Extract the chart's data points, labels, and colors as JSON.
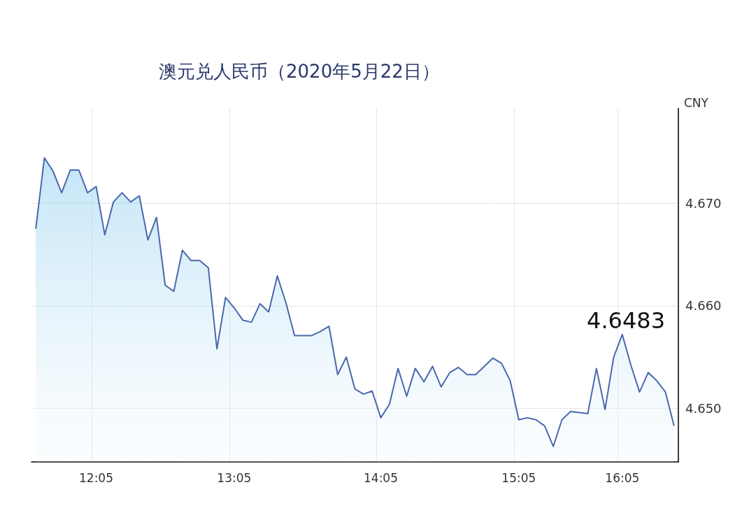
{
  "chart_data": {
    "type": "area",
    "title": "澳元兑人民币（2020年5月22日）",
    "ylabel": "CNY",
    "categories": [
      null,
      null,
      null,
      null,
      null,
      null,
      null,
      "12:05",
      null,
      null,
      null,
      null,
      null,
      null,
      null,
      null,
      null,
      null,
      null,
      null,
      null,
      null,
      null,
      "13:05",
      null,
      null,
      null,
      null,
      null,
      null,
      null,
      null,
      null,
      null,
      null,
      null,
      null,
      null,
      null,
      null,
      "14:05",
      null,
      null,
      null,
      null,
      null,
      null,
      null,
      null,
      null,
      null,
      null,
      null,
      null,
      null,
      null,
      "15:05",
      null,
      null,
      null,
      null,
      null,
      null,
      null,
      null,
      null,
      null,
      null,
      "16:05",
      null,
      null,
      null,
      null,
      null,
      null
    ],
    "series": [
      {
        "color": "#4a68ad",
        "values": [
          4.6675,
          4.6744,
          4.6731,
          4.671,
          4.6732,
          4.6732,
          4.671,
          4.6716,
          4.6669,
          4.6701,
          4.671,
          4.6701,
          4.6707,
          4.6664,
          4.6686,
          4.662,
          4.6614,
          4.6654,
          4.6644,
          4.6644,
          4.6637,
          4.6558,
          4.6608,
          4.6598,
          4.6586,
          4.6584,
          4.6602,
          4.6594,
          4.6629,
          4.6603,
          4.6571,
          4.6571,
          4.6571,
          4.6575,
          4.658,
          4.6533,
          4.655,
          4.6519,
          4.6514,
          4.6517,
          4.6491,
          4.6504,
          4.6539,
          4.6512,
          4.6539,
          4.6526,
          4.6541,
          4.6521,
          4.6535,
          4.654,
          4.6533,
          4.6533,
          4.6541,
          4.6549,
          4.6544,
          4.6527,
          4.6489,
          4.6491,
          4.6489,
          4.6483,
          4.6463,
          4.6489,
          4.6497,
          4.6496,
          4.6495,
          4.6539,
          4.6499,
          4.655,
          4.6572,
          4.6542,
          4.6516,
          4.6535,
          4.6527,
          4.6516,
          4.6483
        ]
      }
    ],
    "ylim": [
      4.6448,
      4.6792
    ],
    "yticks": [
      {
        "value": 4.65,
        "label": "4.650"
      },
      {
        "value": 4.66,
        "label": "4.660"
      },
      {
        "value": 4.67,
        "label": "4.670"
      }
    ],
    "grid": true,
    "marker": "none",
    "line_style": "solid",
    "annotations": [
      "4.6483"
    ]
  }
}
